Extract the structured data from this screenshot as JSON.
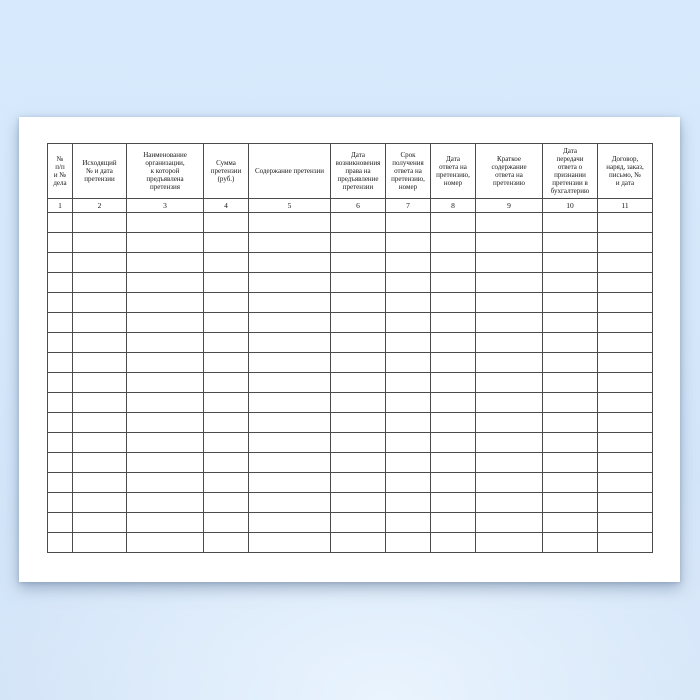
{
  "document": {
    "kind": "claims-register-blank-form",
    "table": {
      "headers": [
        {
          "number": "1",
          "label": "№\nп/п\nи №\nдела"
        },
        {
          "number": "2",
          "label": "Исходящий\n№ и дата\nпретензии"
        },
        {
          "number": "3",
          "label": "Наименование\nорганизации,\nк которой\nпредъявлена\nпретензия"
        },
        {
          "number": "4",
          "label": "Сумма\nпретензии\n(руб.)"
        },
        {
          "number": "5",
          "label": "Содержание претензии"
        },
        {
          "number": "6",
          "label": "Дата\nвозникновения\nправа на\nпредъявление\nпретензии"
        },
        {
          "number": "7",
          "label": "Срок\nполучения\nответа на\nпретензию,\nномер"
        },
        {
          "number": "8",
          "label": "Дата\nответа на\nпретензию,\nномер"
        },
        {
          "number": "9",
          "label": "Краткое\nсодержание\nответа на\nпретензию"
        },
        {
          "number": "10",
          "label": "Дата\nпередачи\nответа о\nпризнании\nпретензии в\nбухгалтерию"
        },
        {
          "number": "11",
          "label": "Договор,\nнаряд, заказ,\nписьмо, №\nи дата"
        }
      ],
      "empty_row_count": 17
    }
  },
  "colors": {
    "backdrop_top": "#d7eafd",
    "backdrop_bottom": "#d0e2f7",
    "page_background": "#ffffff",
    "table_border": "#4b4b4b",
    "text": "#151515"
  }
}
